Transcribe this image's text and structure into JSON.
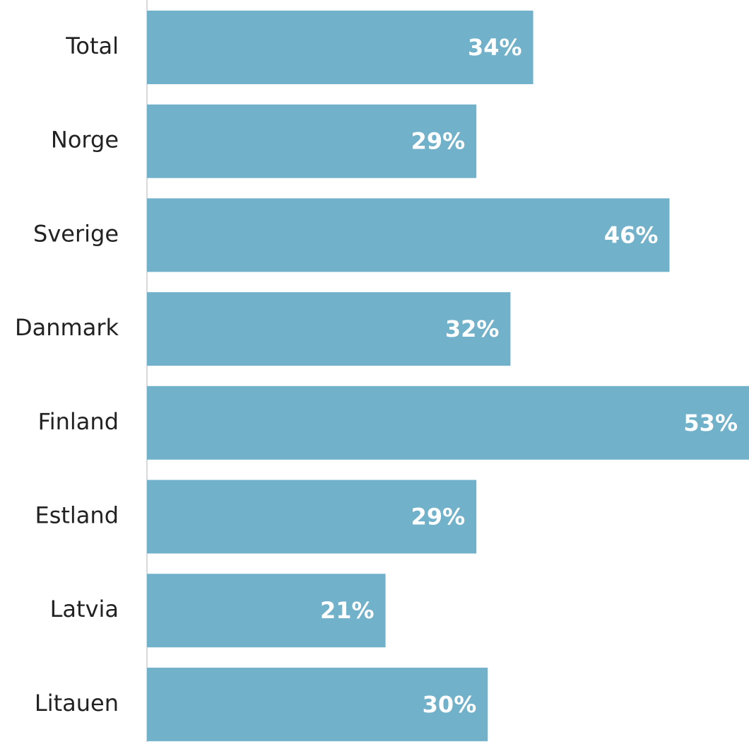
{
  "chart_data": {
    "type": "hbar",
    "categories": [
      "Total",
      "Norge",
      "Sverige",
      "Danmark",
      "Finland",
      "Estland",
      "Latvia",
      "Litauen"
    ],
    "values": [
      34,
      29,
      46,
      32,
      53,
      29,
      21,
      30
    ],
    "value_labels": [
      "34%",
      "29%",
      "46%",
      "32%",
      "53%",
      "29%",
      "21%",
      "30%"
    ],
    "color": "#71b1ca",
    "xlim": [
      0,
      53
    ]
  }
}
